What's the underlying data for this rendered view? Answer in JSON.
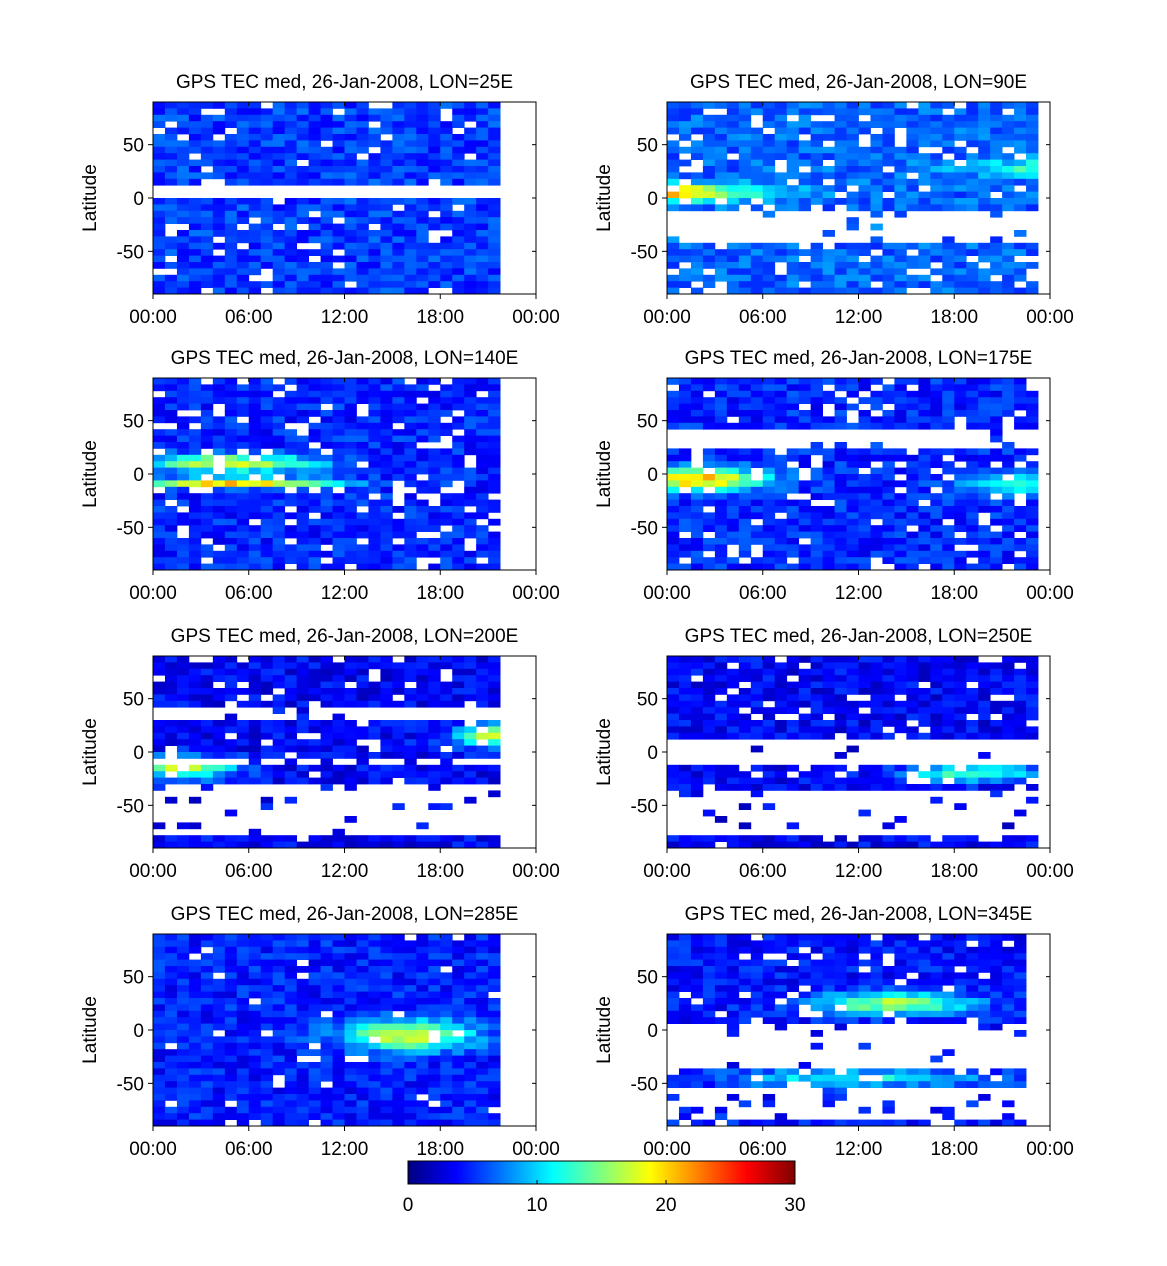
{
  "chart_data": [
    {
      "type": "heatmap",
      "title": "GPS TEC med, 26-Jan-2008, LON=25E",
      "ylabel": "Latitude",
      "x_ticks": [
        "00:00",
        "06:00",
        "12:00",
        "18:00",
        "00:00"
      ],
      "y_ticks": [
        "50",
        "0",
        "-50"
      ],
      "xlim": [
        0,
        24
      ],
      "ylim": [
        -90,
        90
      ]
    },
    {
      "type": "heatmap",
      "title": "GPS TEC med, 26-Jan-2008, LON=90E",
      "ylabel": "Latitude",
      "x_ticks": [
        "00:00",
        "06:00",
        "12:00",
        "18:00",
        "00:00"
      ],
      "y_ticks": [
        "50",
        "0",
        "-50"
      ],
      "xlim": [
        0,
        24
      ],
      "ylim": [
        -90,
        90
      ]
    },
    {
      "type": "heatmap",
      "title": "GPS TEC med, 26-Jan-2008, LON=140E",
      "ylabel": "Latitude",
      "x_ticks": [
        "00:00",
        "06:00",
        "12:00",
        "18:00",
        "00:00"
      ],
      "y_ticks": [
        "50",
        "0",
        "-50"
      ],
      "xlim": [
        0,
        24
      ],
      "ylim": [
        -90,
        90
      ]
    },
    {
      "type": "heatmap",
      "title": "GPS TEC med, 26-Jan-2008, LON=175E",
      "ylabel": "Latitude",
      "x_ticks": [
        "00:00",
        "06:00",
        "12:00",
        "18:00",
        "00:00"
      ],
      "y_ticks": [
        "50",
        "0",
        "-50"
      ],
      "xlim": [
        0,
        24
      ],
      "ylim": [
        -90,
        90
      ]
    },
    {
      "type": "heatmap",
      "title": "GPS TEC med, 26-Jan-2008, LON=200E",
      "ylabel": "Latitude",
      "x_ticks": [
        "00:00",
        "06:00",
        "12:00",
        "18:00",
        "00:00"
      ],
      "y_ticks": [
        "50",
        "0",
        "-50"
      ],
      "xlim": [
        0,
        24
      ],
      "ylim": [
        -90,
        90
      ]
    },
    {
      "type": "heatmap",
      "title": "GPS TEC med, 26-Jan-2008, LON=250E",
      "ylabel": "Latitude",
      "x_ticks": [
        "00:00",
        "06:00",
        "12:00",
        "18:00",
        "00:00"
      ],
      "y_ticks": [
        "50",
        "0",
        "-50"
      ],
      "xlim": [
        0,
        24
      ],
      "ylim": [
        -90,
        90
      ]
    },
    {
      "type": "heatmap",
      "title": "GPS TEC med, 26-Jan-2008, LON=285E",
      "ylabel": "Latitude",
      "x_ticks": [
        "00:00",
        "06:00",
        "12:00",
        "18:00",
        "00:00"
      ],
      "y_ticks": [
        "50",
        "0",
        "-50"
      ],
      "xlim": [
        0,
        24
      ],
      "ylim": [
        -90,
        90
      ]
    },
    {
      "type": "heatmap",
      "title": "GPS TEC med, 26-Jan-2008, LON=345E",
      "ylabel": "Latitude",
      "x_ticks": [
        "00:00",
        "06:00",
        "12:00",
        "18:00",
        "00:00"
      ],
      "y_ticks": [
        "50",
        "0",
        "-50"
      ],
      "xlim": [
        0,
        24
      ],
      "ylim": [
        -90,
        90
      ]
    }
  ],
  "colorbar": {
    "colormap": "jet",
    "range": [
      0,
      30
    ],
    "tick_labels": [
      "0",
      "10",
      "20",
      "30"
    ]
  }
}
